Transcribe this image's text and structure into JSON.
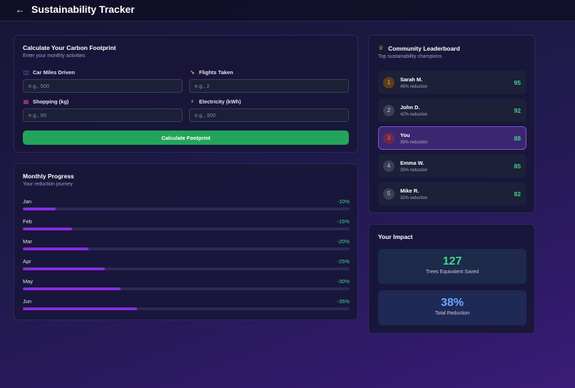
{
  "header": {
    "title": "Sustainability Tracker",
    "back_icon": "arrow-left-icon"
  },
  "calculator": {
    "title": "Calculate Your Carbon Footprint",
    "subtitle": "Enter your monthly activities",
    "fields": [
      {
        "label": "Car Miles Driven",
        "placeholder": "e.g., 500",
        "value": "",
        "icon": "car-icon",
        "icon_color": "#5b8def"
      },
      {
        "label": "Flights Taken",
        "placeholder": "e.g., 2",
        "value": "",
        "icon": "trend-down-icon",
        "icon_color": "#f2a65a"
      },
      {
        "label": "Shopping (kg)",
        "placeholder": "e.g., 50",
        "value": "",
        "icon": "shopping-bag-icon",
        "icon_color": "#e75a9a"
      },
      {
        "label": "Electricity (kWh)",
        "placeholder": "e.g., 300",
        "value": "",
        "icon": "lightning-icon",
        "icon_color": "#f2c230"
      }
    ],
    "button_label": "Calculate Footprint",
    "button_color": "#22a55a"
  },
  "progress": {
    "title": "Monthly Progress",
    "subtitle": "Your reduction journey",
    "months": [
      {
        "month": "Jan",
        "label": "-10%",
        "fill": 0.1
      },
      {
        "month": "Feb",
        "label": "-15%",
        "fill": 0.15
      },
      {
        "month": "Mar",
        "label": "-20%",
        "fill": 0.2
      },
      {
        "month": "Apr",
        "label": "-25%",
        "fill": 0.25
      },
      {
        "month": "May",
        "label": "-30%",
        "fill": 0.3
      },
      {
        "month": "Jun",
        "label": "-35%",
        "fill": 0.35
      }
    ]
  },
  "leaderboard": {
    "title": "Community Leaderboard",
    "subtitle": "Top sustainability champions",
    "icon": "trophy-icon",
    "entries": [
      {
        "rank": "1",
        "name": "Sarah M.",
        "reduction": "45% reduction",
        "score": "95"
      },
      {
        "rank": "2",
        "name": "John D.",
        "reduction": "42% reduction",
        "score": "92"
      },
      {
        "rank": "3",
        "name": "You",
        "reduction": "38% reduction",
        "score": "88",
        "is_current_user": true
      },
      {
        "rank": "4",
        "name": "Emma W.",
        "reduction": "35% reduction",
        "score": "85"
      },
      {
        "rank": "5",
        "name": "Mike R.",
        "reduction": "32% reduction",
        "score": "82"
      }
    ]
  },
  "impact": {
    "title": "Your Impact",
    "stats": [
      {
        "value": "127",
        "label": "Trees Equivalent Saved",
        "color": "#3fd68a"
      },
      {
        "value": "38%",
        "label": "Total Reduction",
        "color": "#6aa8ff"
      }
    ]
  },
  "colors": {
    "accent_green": "#3fd68a",
    "progress_purple": "#8a2be2",
    "highlight_row": "#3b2770"
  }
}
